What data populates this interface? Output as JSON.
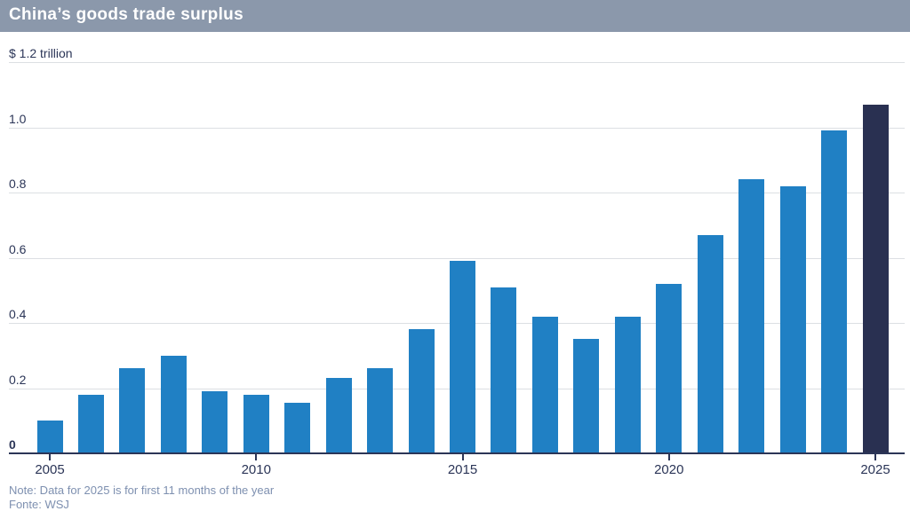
{
  "header": {
    "title": "China’s goods trade surplus",
    "bg_color": "#8b98ab",
    "text_color": "#ffffff"
  },
  "chart_data": {
    "type": "bar",
    "title": "China’s goods trade surplus",
    "categories": [
      2005,
      2006,
      2007,
      2008,
      2009,
      2010,
      2011,
      2012,
      2013,
      2014,
      2015,
      2016,
      2017,
      2018,
      2019,
      2020,
      2021,
      2022,
      2023,
      2024,
      2025
    ],
    "values": [
      0.1,
      0.18,
      0.26,
      0.3,
      0.19,
      0.18,
      0.155,
      0.23,
      0.26,
      0.38,
      0.59,
      0.51,
      0.42,
      0.35,
      0.42,
      0.52,
      0.67,
      0.84,
      0.82,
      0.99,
      1.07
    ],
    "unit": "$ trillion",
    "ylim": [
      0,
      1.2
    ],
    "yticks": [
      {
        "v": 0,
        "label": "0",
        "bold": true,
        "gridline": false
      },
      {
        "v": 0.2,
        "label": "0.2",
        "bold": false,
        "gridline": true
      },
      {
        "v": 0.4,
        "label": "0.4",
        "bold": false,
        "gridline": true
      },
      {
        "v": 0.6,
        "label": "0.6",
        "bold": false,
        "gridline": true
      },
      {
        "v": 0.8,
        "label": "0.8",
        "bold": false,
        "gridline": true
      },
      {
        "v": 1.0,
        "label": "1.0",
        "bold": false,
        "gridline": true
      },
      {
        "v": 1.2,
        "label": "$ 1.2 trillion",
        "bold": false,
        "gridline": true
      }
    ],
    "xticks": [
      2005,
      2010,
      2015,
      2020,
      2025
    ],
    "grid": true,
    "legend": "none",
    "bar_color": "#2080c4",
    "highlight_year": 2025,
    "highlight_color": "#293051",
    "axis_color": "#2b3557",
    "gridline_color": "#dcdfe3"
  },
  "footer": {
    "note": "Note: Data for 2025 is for first 11 months of the year",
    "source": "Fonte: WSJ"
  }
}
